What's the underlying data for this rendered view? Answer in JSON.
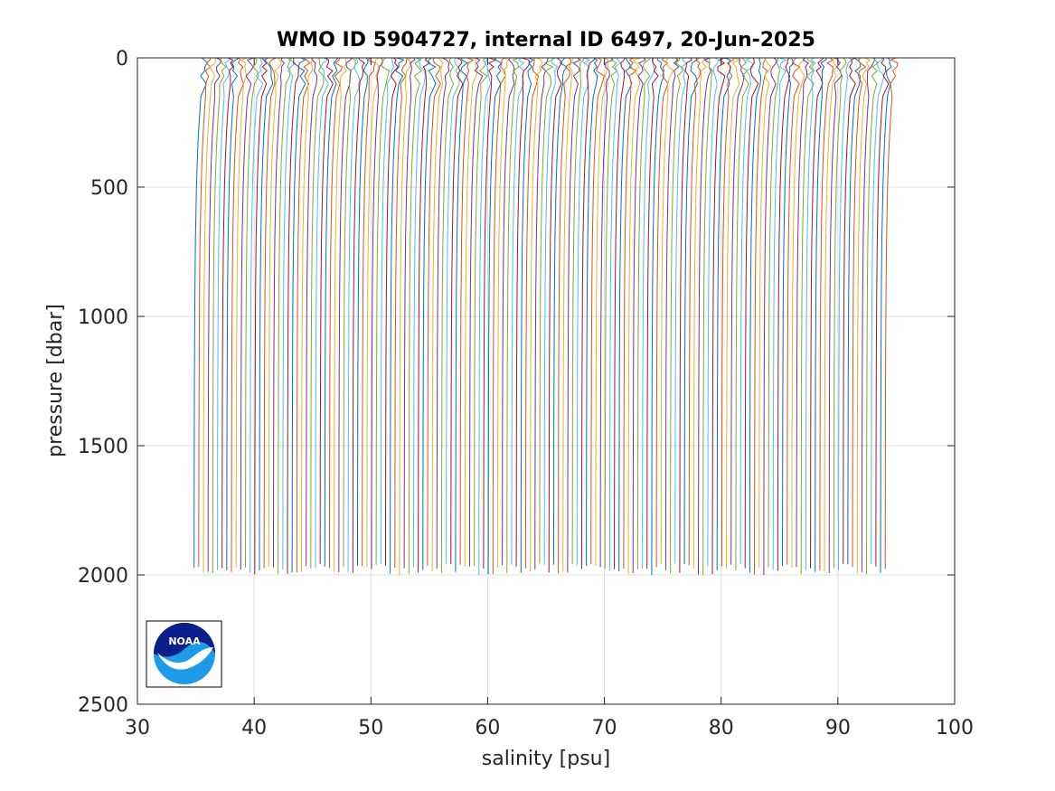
{
  "chart_data": {
    "type": "line",
    "title": "WMO ID 5904727, internal ID 6497, 20-Jun-2025",
    "xlabel": "salinity [psu]",
    "ylabel": "pressure [dbar]",
    "xlim": [
      30,
      100
    ],
    "ylim": [
      0,
      2500
    ],
    "y_reversed": true,
    "grid": true,
    "xticks": [
      30,
      40,
      50,
      60,
      70,
      80,
      90,
      100
    ],
    "yticks": [
      0,
      500,
      1000,
      1500,
      2000,
      2500
    ],
    "xtick_labels": [
      "30",
      "40",
      "50",
      "60",
      "70",
      "80",
      "90",
      "100"
    ],
    "ytick_labels": [
      "0",
      "500",
      "1000",
      "1500",
      "2000",
      "2500"
    ],
    "series_colors": [
      "#0072BD",
      "#D95319",
      "#EDB120",
      "#7E2F8E",
      "#77AC30",
      "#4DBEEE",
      "#A2142F"
    ],
    "profiles": {
      "count": 149,
      "first_bottom_salinity": 34.9,
      "offset_step": 0.4,
      "max_pressure": 2000,
      "surface_salinity_offset": 0.6
    },
    "logo": "noaa-logo"
  }
}
